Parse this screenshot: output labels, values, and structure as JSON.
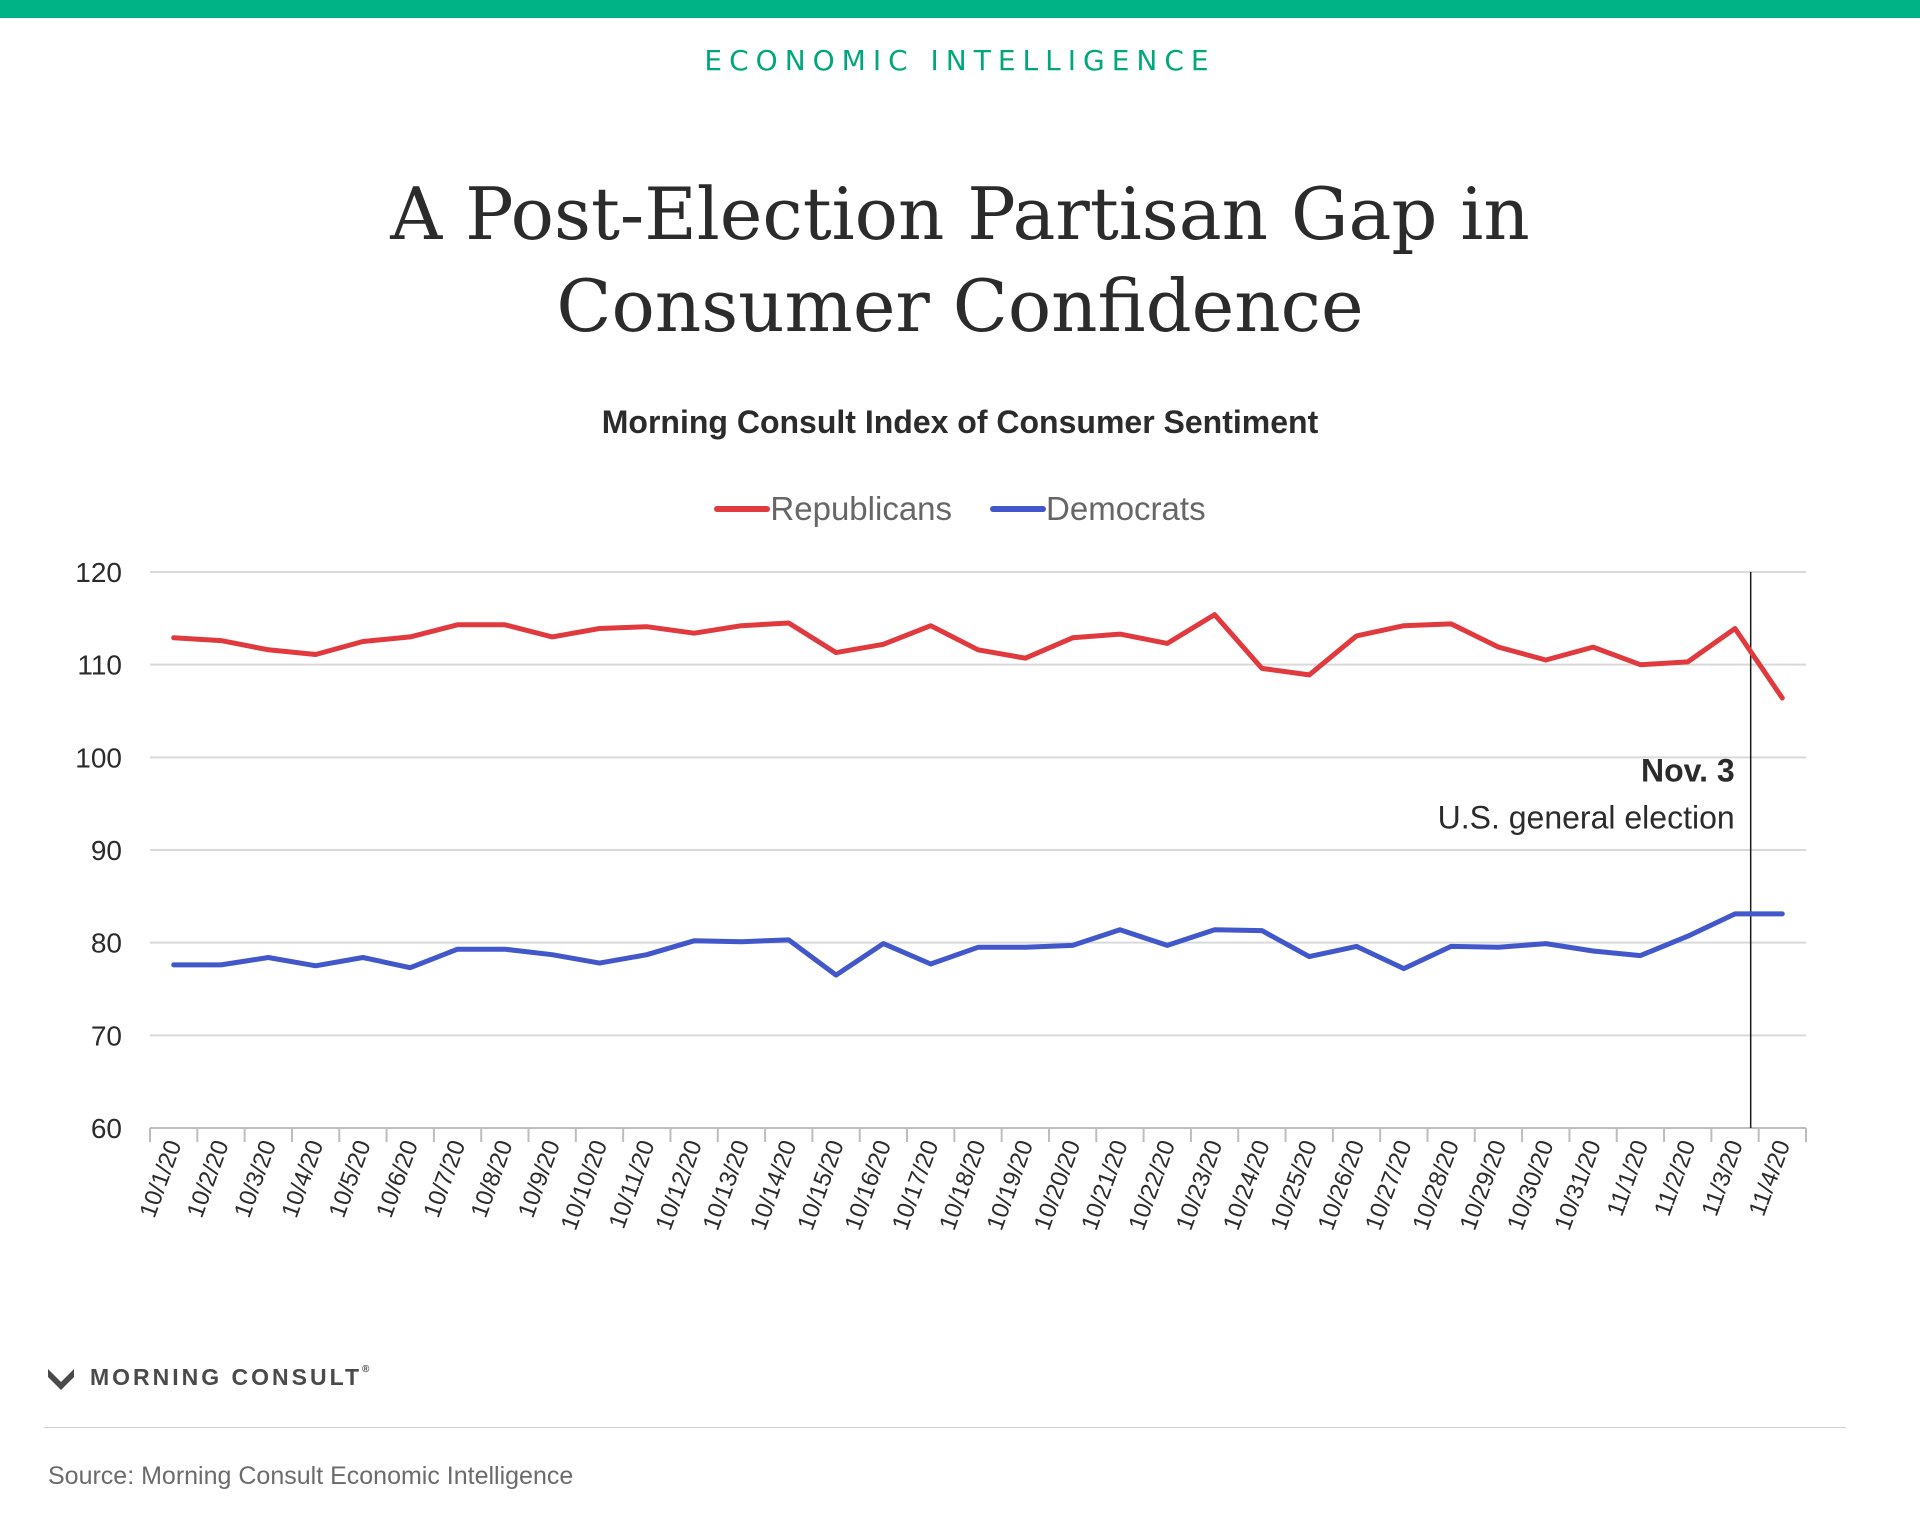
{
  "header": {
    "kicker": "ECONOMIC INTELLIGENCE",
    "title": "A Post-Election Partisan Gap in Consumer Confidence",
    "accent_color": "#00b386"
  },
  "chart_data": {
    "type": "line",
    "title": "Morning Consult Index of Consumer Sentiment",
    "xlabel": "",
    "ylabel": "",
    "ylim": [
      60,
      120
    ],
    "yticks": [
      60,
      70,
      80,
      90,
      100,
      110,
      120
    ],
    "grid": true,
    "legend_position": "top-center",
    "categories": [
      "10/1/20",
      "10/2/20",
      "10/3/20",
      "10/4/20",
      "10/5/20",
      "10/6/20",
      "10/7/20",
      "10/8/20",
      "10/9/20",
      "10/10/20",
      "10/11/20",
      "10/12/20",
      "10/13/20",
      "10/14/20",
      "10/15/20",
      "10/16/20",
      "10/17/20",
      "10/18/20",
      "10/19/20",
      "10/20/20",
      "10/21/20",
      "10/22/20",
      "10/23/20",
      "10/24/20",
      "10/25/20",
      "10/26/20",
      "10/27/20",
      "10/28/20",
      "10/29/20",
      "10/30/20",
      "10/31/20",
      "11/1/20",
      "11/2/20",
      "11/3/20",
      "11/4/20"
    ],
    "series": [
      {
        "name": "Republicans",
        "color": "#e03a3e",
        "values": [
          112.9,
          112.6,
          111.6,
          111.1,
          112.5,
          113.0,
          114.3,
          114.3,
          113.0,
          113.9,
          114.1,
          113.4,
          114.2,
          114.5,
          111.3,
          112.2,
          114.2,
          111.6,
          110.7,
          112.9,
          113.3,
          112.3,
          115.4,
          109.6,
          108.9,
          113.1,
          114.2,
          114.4,
          111.9,
          110.5,
          111.9,
          110.0,
          110.3,
          113.9,
          106.4
        ]
      },
      {
        "name": "Democrats",
        "color": "#4257c9",
        "values": [
          77.6,
          77.6,
          78.4,
          77.5,
          78.4,
          77.3,
          79.3,
          79.3,
          78.7,
          77.8,
          78.7,
          80.2,
          80.1,
          80.3,
          76.5,
          79.9,
          77.7,
          79.5,
          79.5,
          79.7,
          81.4,
          79.7,
          81.4,
          81.3,
          78.5,
          79.6,
          77.2,
          79.6,
          79.5,
          79.9,
          79.1,
          78.6,
          80.7,
          83.1,
          83.1
        ]
      }
    ],
    "annotation": {
      "category": "11/3/20",
      "label_bold": "Nov. 3",
      "label": "U.S. general election"
    }
  },
  "footer": {
    "brand": "MORNING CONSULT",
    "brand_mark": "®",
    "source": "Source: Morning Consult Economic Intelligence"
  }
}
